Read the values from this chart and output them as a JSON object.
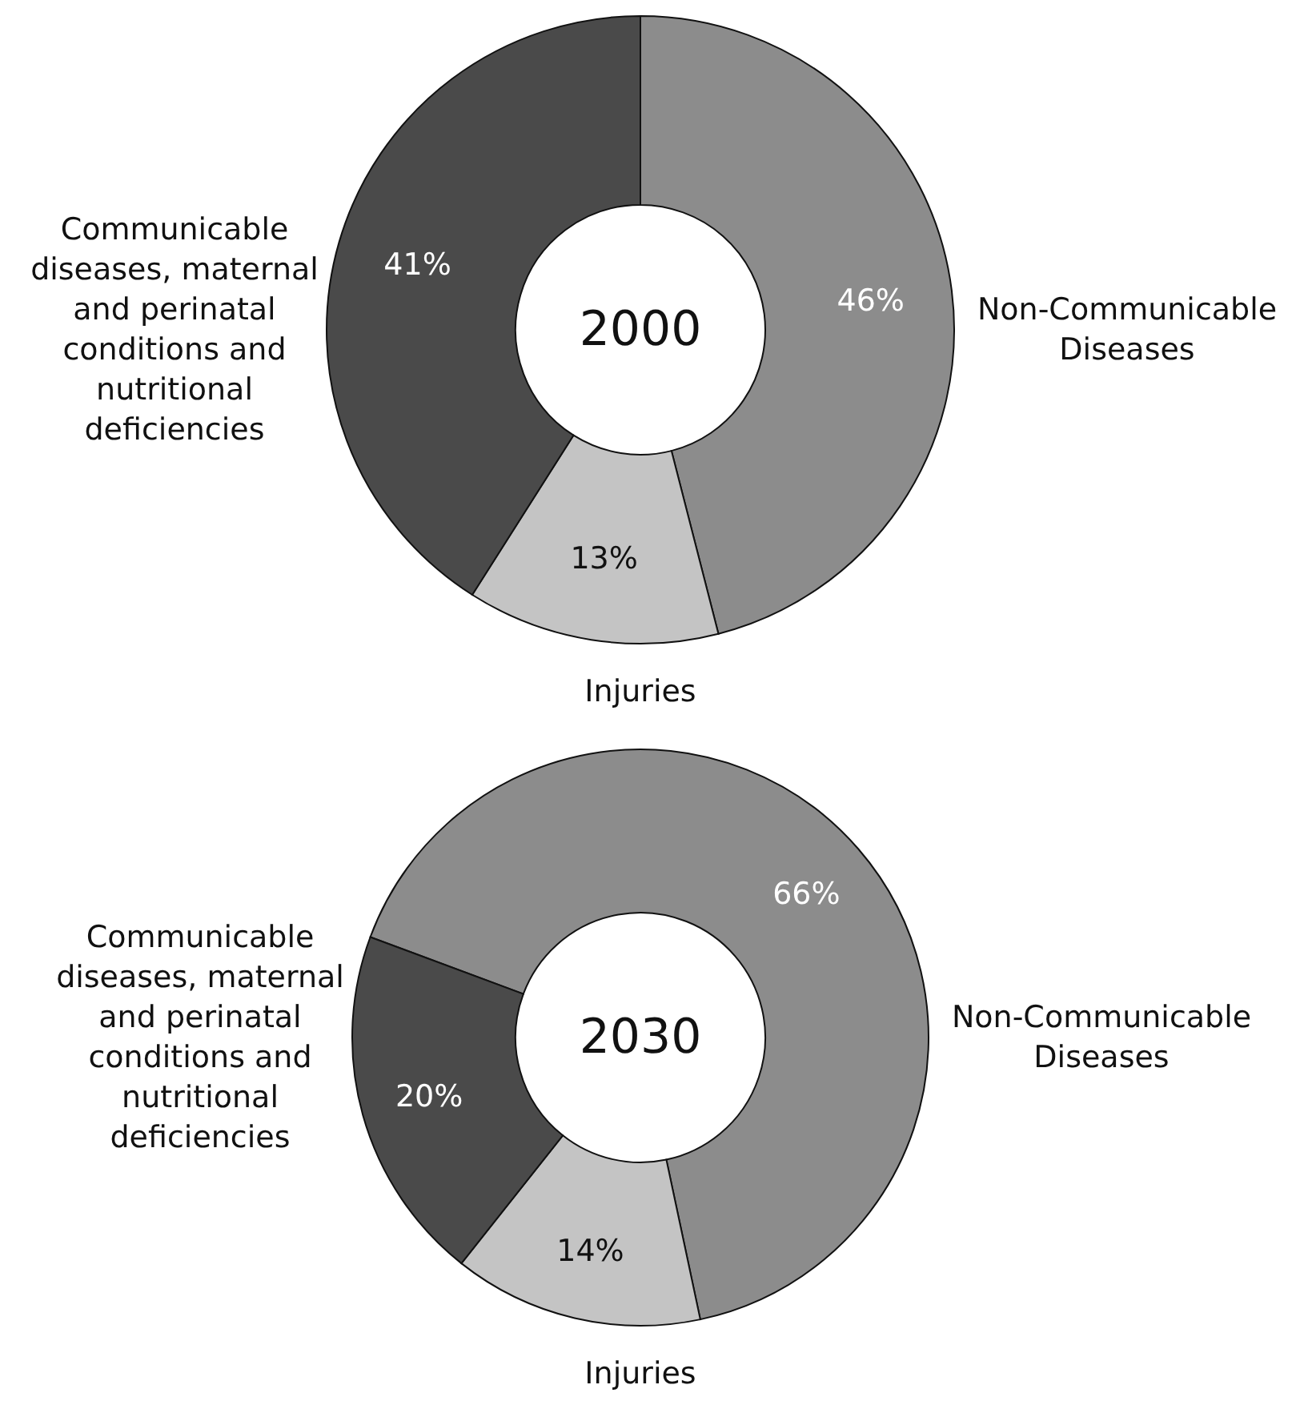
{
  "chart_data": [
    {
      "type": "donut",
      "title": "2000",
      "categories": [
        "Non-Communicable Diseases",
        "Injuries",
        "Communicable diseases, maternal and perinatal conditions and nutritional deficiencies"
      ],
      "values": [
        46,
        13,
        41
      ],
      "colors": [
        "#8c8c8c",
        "#c4c4c4",
        "#4a4a4a"
      ],
      "value_labels": [
        "46%",
        "13%",
        "41%"
      ]
    },
    {
      "type": "donut",
      "title": "2030",
      "categories": [
        "Non-Communicable Diseases",
        "Injuries",
        "Communicable diseases, maternal and perinatal conditions and nutritional deficiencies"
      ],
      "values": [
        66,
        14,
        20
      ],
      "colors": [
        "#8c8c8c",
        "#c4c4c4",
        "#4a4a4a"
      ],
      "value_labels": [
        "66%",
        "14%",
        "20%"
      ]
    }
  ]
}
